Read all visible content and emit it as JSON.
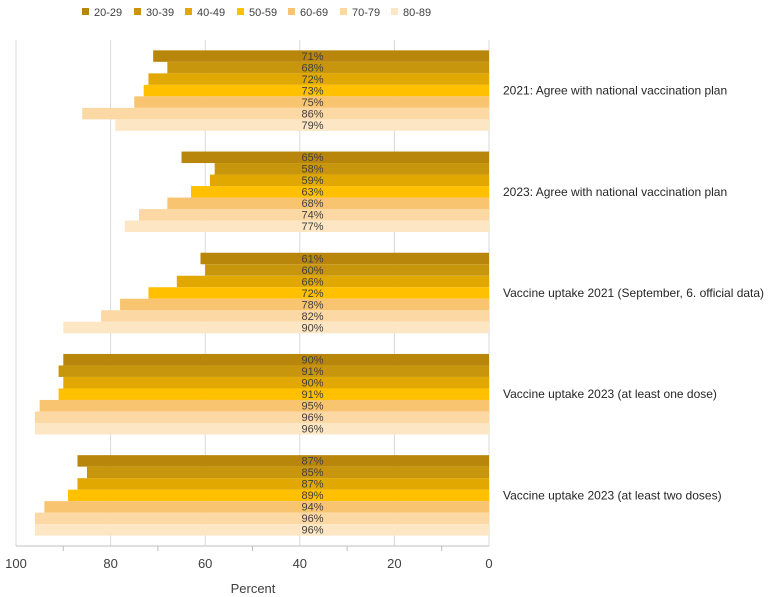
{
  "chart_data": {
    "type": "bar",
    "orientation": "horizontal",
    "x_axis_reversed": true,
    "xlabel": "Percent",
    "xlim": [
      0,
      100
    ],
    "x_ticks": [
      100,
      80,
      60,
      40,
      20,
      0
    ],
    "grid": "vertical",
    "legend_position": "top",
    "categories": [
      "2021: Agree with national vaccination plan",
      "2023: Agree with national vaccination plan",
      "Vaccine uptake 2021 (September, 6. official data)",
      "Vaccine uptake 2023 (at least one dose)",
      "Vaccine uptake 2023 (at least two doses)"
    ],
    "series": [
      {
        "name": "20-29",
        "color": "#b8860b",
        "values": [
          71,
          65,
          61,
          90,
          87
        ]
      },
      {
        "name": "30-39",
        "color": "#c8960c",
        "values": [
          68,
          58,
          60,
          91,
          85
        ]
      },
      {
        "name": "40-49",
        "color": "#e0a800",
        "values": [
          72,
          59,
          66,
          90,
          87
        ]
      },
      {
        "name": "50-59",
        "color": "#ffc000",
        "values": [
          73,
          63,
          72,
          91,
          89
        ]
      },
      {
        "name": "60-69",
        "color": "#f8c470",
        "values": [
          75,
          68,
          78,
          95,
          94
        ]
      },
      {
        "name": "70-79",
        "color": "#fbd8a4",
        "values": [
          86,
          74,
          82,
          96,
          96
        ]
      },
      {
        "name": "80-89",
        "color": "#fde6c3",
        "values": [
          79,
          77,
          90,
          96,
          96
        ]
      }
    ],
    "value_suffix": "%"
  }
}
